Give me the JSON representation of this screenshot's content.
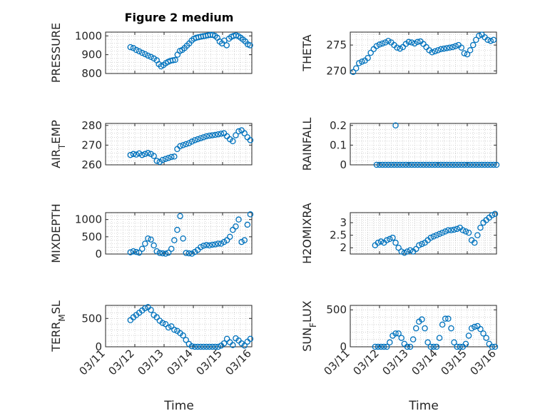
{
  "figure": {
    "title": "Figure 2 medium",
    "x_axis_label": "Time",
    "x_tick_labels": [
      "03/11",
      "03/12",
      "03/13",
      "03/14",
      "03/15",
      "03/16"
    ]
  },
  "chart_data": [
    {
      "type": "scatter",
      "title": "Figure 2 medium",
      "ylabel": "PRESSURE",
      "ylim": [
        800,
        1020
      ],
      "yticks": [
        800,
        900,
        1000
      ],
      "xlim": [
        0,
        5
      ],
      "grid": "on",
      "marker": "open-circle",
      "color": "#0072bd",
      "x": [
        0.85,
        0.95,
        1.05,
        1.15,
        1.25,
        1.35,
        1.45,
        1.55,
        1.65,
        1.75,
        1.82,
        1.9,
        1.98,
        2.06,
        2.14,
        2.22,
        2.3,
        2.38,
        2.46,
        2.54,
        2.62,
        2.7,
        2.78,
        2.86,
        2.94,
        3.02,
        3.1,
        3.18,
        3.26,
        3.34,
        3.42,
        3.5,
        3.58,
        3.66,
        3.74,
        3.82,
        3.9,
        3.98,
        4.06,
        4.14,
        4.22,
        4.3,
        4.38,
        4.46,
        4.54,
        4.62,
        4.7,
        4.78,
        4.86,
        4.94
      ],
      "y": [
        940,
        935,
        925,
        918,
        910,
        903,
        895,
        888,
        880,
        870,
        850,
        838,
        845,
        855,
        862,
        868,
        870,
        872,
        900,
        920,
        925,
        935,
        948,
        960,
        975,
        985,
        990,
        993,
        996,
        998,
        1000,
        1003,
        1005,
        1005,
        1000,
        990,
        970,
        960,
        975,
        950,
        985,
        995,
        1000,
        1003,
        998,
        990,
        980,
        970,
        955,
        950
      ]
    },
    {
      "type": "scatter",
      "ylabel": "THETA",
      "ylim": [
        269.5,
        277.5
      ],
      "yticks": [
        270,
        275
      ],
      "xlim": [
        0,
        5
      ],
      "grid": "on",
      "marker": "open-circle",
      "color": "#0072bd",
      "x": [
        0.1,
        0.2,
        0.3,
        0.4,
        0.5,
        0.6,
        0.7,
        0.8,
        0.9,
        1.0,
        1.1,
        1.2,
        1.3,
        1.4,
        1.5,
        1.6,
        1.7,
        1.8,
        1.9,
        2.0,
        2.1,
        2.2,
        2.3,
        2.4,
        2.5,
        2.6,
        2.7,
        2.8,
        2.9,
        3.0,
        3.1,
        3.2,
        3.3,
        3.4,
        3.5,
        3.6,
        3.7,
        3.8,
        3.9,
        4.0,
        4.1,
        4.2,
        4.3,
        4.4,
        4.5,
        4.6,
        4.7,
        4.8,
        4.9
      ],
      "y": [
        269.8,
        270.5,
        271.5,
        271.8,
        272.0,
        272.5,
        273.5,
        274.2,
        274.8,
        275.1,
        275.3,
        275.5,
        275.8,
        275.5,
        275.0,
        274.5,
        274.3,
        274.6,
        275.2,
        275.6,
        275.5,
        275.3,
        275.6,
        275.7,
        275.2,
        274.6,
        274.0,
        273.6,
        273.8,
        274.0,
        274.2,
        274.3,
        274.4,
        274.5,
        274.6,
        274.8,
        275.0,
        274.5,
        273.4,
        273.2,
        274.0,
        275.0,
        276.0,
        276.8,
        277.0,
        276.5,
        276.0,
        275.8,
        276.0
      ]
    },
    {
      "type": "scatter",
      "ylabel": "AIR",
      "ylabel_subscript": "T",
      "ylabel_suffix": "EMP",
      "ylim": [
        260,
        281
      ],
      "yticks": [
        260,
        270,
        280
      ],
      "xlim": [
        0,
        5
      ],
      "grid": "on",
      "marker": "open-circle",
      "color": "#0072bd",
      "x": [
        0.85,
        0.95,
        1.05,
        1.15,
        1.25,
        1.35,
        1.45,
        1.55,
        1.65,
        1.75,
        1.85,
        1.95,
        2.05,
        2.15,
        2.25,
        2.35,
        2.45,
        2.55,
        2.65,
        2.75,
        2.85,
        2.95,
        3.05,
        3.15,
        3.25,
        3.35,
        3.45,
        3.55,
        3.65,
        3.75,
        3.85,
        3.95,
        4.05,
        4.15,
        4.25,
        4.35,
        4.45,
        4.55,
        4.65,
        4.75,
        4.85,
        4.95
      ],
      "y": [
        265,
        265.5,
        265.2,
        265.8,
        265.0,
        265.5,
        266.0,
        265.5,
        264.5,
        262.0,
        261.5,
        262.5,
        263.0,
        263.5,
        264.0,
        264.2,
        268.0,
        269.5,
        270.0,
        270.5,
        271.0,
        271.8,
        272.5,
        273.0,
        273.5,
        274.0,
        274.5,
        274.8,
        275.0,
        275.2,
        275.5,
        275.8,
        276.0,
        274.5,
        273.0,
        272.0,
        275.0,
        277.0,
        277.5,
        276.0,
        274.0,
        272.5
      ]
    },
    {
      "type": "scatter",
      "ylabel": "RAINFALL",
      "ylim": [
        0,
        0.21
      ],
      "yticks": [
        0,
        0.1,
        0.2
      ],
      "xlim": [
        0,
        5
      ],
      "grid": "on",
      "marker": "open-circle",
      "color": "#0072bd",
      "x": [
        0.9,
        1.0,
        1.1,
        1.2,
        1.3,
        1.4,
        1.5,
        1.6,
        1.7,
        1.8,
        1.9,
        2.0,
        2.1,
        2.2,
        2.3,
        2.4,
        2.5,
        2.6,
        2.7,
        2.8,
        2.9,
        3.0,
        3.1,
        3.2,
        3.3,
        3.4,
        3.5,
        3.6,
        3.7,
        3.8,
        3.9,
        4.0,
        4.1,
        4.2,
        4.3,
        4.4,
        4.5,
        4.6,
        4.7,
        4.8,
        4.9,
        5.0,
        1.55
      ],
      "y": [
        0,
        0,
        0,
        0,
        0,
        0,
        0,
        0,
        0,
        0,
        0,
        0,
        0,
        0,
        0,
        0,
        0,
        0,
        0,
        0,
        0,
        0,
        0,
        0,
        0,
        0,
        0,
        0,
        0,
        0,
        0,
        0,
        0,
        0,
        0,
        0,
        0,
        0,
        0,
        0,
        0,
        0,
        0.2
      ]
    },
    {
      "type": "scatter",
      "ylabel": "MIXDEPTH",
      "ylim": [
        0,
        1200
      ],
      "yticks": [
        0,
        500,
        1000
      ],
      "xlim": [
        0,
        5
      ],
      "grid": "on",
      "marker": "open-circle",
      "color": "#0072bd",
      "x": [
        0.85,
        0.95,
        1.05,
        1.15,
        1.25,
        1.35,
        1.45,
        1.55,
        1.65,
        1.75,
        1.85,
        1.95,
        2.05,
        2.15,
        2.25,
        2.35,
        2.45,
        2.55,
        2.65,
        2.75,
        2.85,
        2.95,
        3.05,
        3.15,
        3.25,
        3.35,
        3.45,
        3.55,
        3.65,
        3.75,
        3.85,
        3.95,
        4.05,
        4.15,
        4.25,
        4.35,
        4.45,
        4.55,
        4.65,
        4.75,
        4.85,
        4.95
      ],
      "y": [
        50,
        80,
        60,
        40,
        150,
        300,
        450,
        420,
        250,
        80,
        30,
        20,
        10,
        40,
        150,
        400,
        700,
        1100,
        450,
        30,
        20,
        10,
        60,
        120,
        200,
        240,
        260,
        250,
        270,
        280,
        300,
        300,
        350,
        400,
        500,
        700,
        800,
        1000,
        350,
        400,
        850,
        1150
      ]
    },
    {
      "type": "scatter",
      "ylabel": "H2OMIXRA",
      "ylim": [
        1.75,
        3.4
      ],
      "yticks": [
        2,
        2.5,
        3
      ],
      "xlim": [
        0,
        5
      ],
      "grid": "on",
      "marker": "open-circle",
      "color": "#0072bd",
      "x": [
        0.85,
        0.95,
        1.05,
        1.15,
        1.25,
        1.35,
        1.45,
        1.55,
        1.65,
        1.75,
        1.85,
        1.95,
        2.05,
        2.15,
        2.25,
        2.35,
        2.45,
        2.55,
        2.65,
        2.75,
        2.85,
        2.95,
        3.05,
        3.15,
        3.25,
        3.35,
        3.45,
        3.55,
        3.65,
        3.75,
        3.85,
        3.95,
        4.05,
        4.15,
        4.25,
        4.35,
        4.45,
        4.55,
        4.65,
        4.75,
        4.85,
        4.95
      ],
      "y": [
        2.1,
        2.2,
        2.25,
        2.2,
        2.3,
        2.35,
        2.4,
        2.2,
        2.0,
        1.85,
        1.8,
        1.85,
        1.9,
        1.85,
        1.95,
        2.1,
        2.15,
        2.2,
        2.3,
        2.4,
        2.45,
        2.5,
        2.55,
        2.6,
        2.65,
        2.7,
        2.7,
        2.72,
        2.75,
        2.8,
        2.7,
        2.65,
        2.6,
        2.3,
        2.2,
        2.5,
        2.8,
        3.0,
        3.1,
        3.2,
        3.3,
        3.35
      ]
    },
    {
      "type": "scatter",
      "ylabel": "TERR",
      "ylabel_subscript": "M",
      "ylabel_suffix": "SL",
      "ylim": [
        0,
        730
      ],
      "yticks": [
        0,
        500
      ],
      "xlim": [
        0,
        5
      ],
      "grid": "on",
      "marker": "open-circle",
      "color": "#0072bd",
      "x": [
        0.85,
        0.95,
        1.05,
        1.15,
        1.25,
        1.35,
        1.45,
        1.55,
        1.65,
        1.75,
        1.85,
        1.95,
        2.05,
        2.15,
        2.25,
        2.35,
        2.45,
        2.55,
        2.65,
        2.75,
        2.85,
        2.95,
        3.05,
        3.15,
        3.25,
        3.35,
        3.45,
        3.55,
        3.65,
        3.75,
        3.85,
        3.95,
        4.05,
        4.15,
        4.25,
        4.35,
        4.45,
        4.55,
        4.65,
        4.75,
        4.85,
        4.95
      ],
      "y": [
        470,
        520,
        560,
        600,
        640,
        680,
        700,
        650,
        560,
        520,
        460,
        420,
        400,
        340,
        360,
        300,
        280,
        240,
        200,
        120,
        50,
        10,
        0,
        0,
        0,
        0,
        0,
        0,
        0,
        0,
        0,
        20,
        60,
        140,
        80,
        30,
        150,
        110,
        60,
        20,
        90,
        140
      ]
    },
    {
      "type": "scatter",
      "ylabel": "SUN",
      "ylabel_subscript": "F",
      "ylabel_suffix": "LUX",
      "ylim": [
        0,
        560
      ],
      "yticks": [
        0,
        500
      ],
      "xlim": [
        0,
        5
      ],
      "grid": "on",
      "marker": "open-circle",
      "color": "#0072bd",
      "x": [
        0.85,
        0.95,
        1.05,
        1.15,
        1.25,
        1.35,
        1.45,
        1.55,
        1.65,
        1.75,
        1.85,
        1.95,
        2.05,
        2.15,
        2.25,
        2.35,
        2.45,
        2.55,
        2.65,
        2.75,
        2.85,
        2.95,
        3.05,
        3.15,
        3.25,
        3.35,
        3.45,
        3.55,
        3.65,
        3.75,
        3.85,
        3.95,
        4.05,
        4.15,
        4.25,
        4.35,
        4.45,
        4.55,
        4.65,
        4.75,
        4.85,
        4.95
      ],
      "y": [
        0,
        0,
        0,
        0,
        0,
        60,
        150,
        180,
        180,
        120,
        40,
        0,
        0,
        100,
        250,
        340,
        370,
        250,
        60,
        0,
        0,
        0,
        120,
        300,
        380,
        380,
        250,
        60,
        0,
        0,
        0,
        40,
        150,
        250,
        270,
        280,
        240,
        180,
        120,
        40,
        0,
        0
      ]
    }
  ]
}
